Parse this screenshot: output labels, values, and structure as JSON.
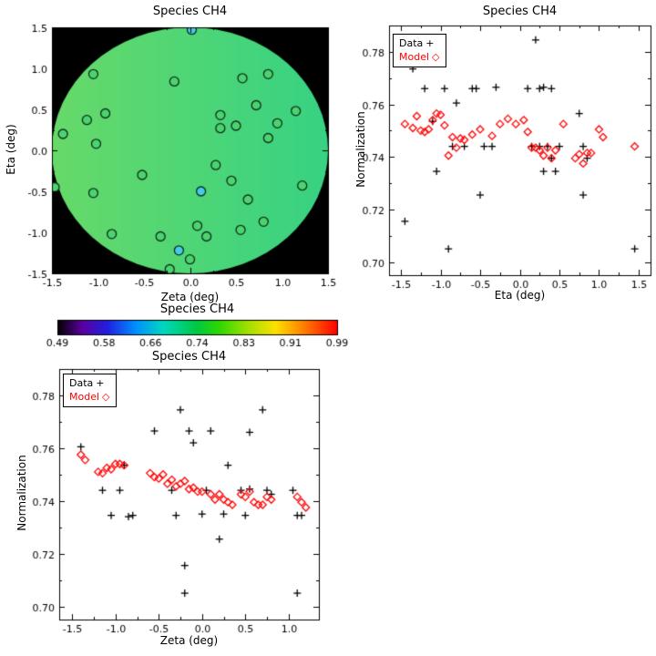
{
  "page": {
    "background": "#ffffff"
  },
  "chart_data": [
    {
      "id": "map",
      "type": "scatter",
      "title": "Species CH4",
      "xlabel": "Zeta (deg)",
      "ylabel": "Eta (deg)",
      "xlim": [
        -1.5,
        1.5
      ],
      "ylim": [
        -1.5,
        1.5
      ],
      "xticks": [
        -1.5,
        -1.0,
        -0.5,
        0.0,
        0.5,
        1.0,
        1.5
      ],
      "xticklabels": [
        "-1.5",
        "-1.0",
        "-0.5",
        "0.0",
        "0.5",
        "1.0",
        "1.5"
      ],
      "yticks": [
        -1.5,
        -1.0,
        -0.5,
        0.0,
        0.5,
        1.0,
        1.5
      ],
      "yticklabels": [
        "-1.5",
        "-1.0",
        "-0.5",
        "0.0",
        "0.5",
        "1.0",
        "1.5"
      ],
      "plot_bg": "#000000",
      "disk": {
        "cx": 0,
        "cy": 0,
        "radius": 1.5,
        "gradient": [
          "#67da69",
          "#37d283"
        ]
      },
      "point_style": {
        "outline": "#0c2e18",
        "default_fill": "#4cd36f",
        "radius_px": 5
      },
      "points": [
        {
          "x": 0.02,
          "y": 1.47,
          "fill": "#49c8e8"
        },
        {
          "x": -1.05,
          "y": 0.93
        },
        {
          "x": -0.17,
          "y": 0.84
        },
        {
          "x": 0.57,
          "y": 0.88
        },
        {
          "x": 0.85,
          "y": 0.93
        },
        {
          "x": 1.15,
          "y": 0.48
        },
        {
          "x": 0.72,
          "y": 0.55
        },
        {
          "x": 0.95,
          "y": 0.33
        },
        {
          "x": 0.33,
          "y": 0.43
        },
        {
          "x": 0.5,
          "y": 0.3
        },
        {
          "x": 0.33,
          "y": 0.27
        },
        {
          "x": -0.92,
          "y": 0.45
        },
        {
          "x": -1.12,
          "y": 0.37
        },
        {
          "x": -1.38,
          "y": 0.2
        },
        {
          "x": -1.02,
          "y": 0.08
        },
        {
          "x": 0.85,
          "y": 0.15
        },
        {
          "x": -1.47,
          "y": -0.45
        },
        {
          "x": -1.05,
          "y": -0.52
        },
        {
          "x": -0.52,
          "y": -0.3
        },
        {
          "x": 0.28,
          "y": -0.18
        },
        {
          "x": 0.45,
          "y": -0.37
        },
        {
          "x": 0.12,
          "y": -0.5,
          "fill": "#49c8e8"
        },
        {
          "x": 0.63,
          "y": -0.6
        },
        {
          "x": 1.22,
          "y": -0.43
        },
        {
          "x": -0.85,
          "y": -1.02
        },
        {
          "x": -0.32,
          "y": -1.05
        },
        {
          "x": 0.08,
          "y": -0.92
        },
        {
          "x": 0.55,
          "y": -0.97
        },
        {
          "x": 0.8,
          "y": -0.87
        },
        {
          "x": -0.12,
          "y": -1.22,
          "fill": "#49c8e8"
        },
        {
          "x": 0.0,
          "y": -1.33
        },
        {
          "x": -0.22,
          "y": -1.45
        },
        {
          "x": 0.18,
          "y": -1.05
        }
      ]
    },
    {
      "id": "norm_vs_eta",
      "type": "scatter",
      "title": "Species CH4",
      "xlabel": "Eta (deg)",
      "ylabel": "Normalization",
      "xlim": [
        -1.65,
        1.65
      ],
      "ylim": [
        0.695,
        0.79
      ],
      "xticks": [
        -1.5,
        -1.0,
        -0.5,
        0.0,
        0.5,
        1.0,
        1.5
      ],
      "xticklabels": [
        "-1.5",
        "-1.0",
        "-0.5",
        "0.0",
        "0.5",
        "1.0",
        "1.5"
      ],
      "yticks": [
        0.7,
        0.72,
        0.74,
        0.76,
        0.78
      ],
      "yticklabels": [
        "0.70",
        "0.72",
        "0.74",
        "0.76",
        "0.78"
      ],
      "legend": [
        {
          "label": "Data",
          "glyph": "+",
          "color": "#000000"
        },
        {
          "label": "Model",
          "glyph": "◇",
          "color": "#ff0000"
        }
      ],
      "series": [
        {
          "name": "Data",
          "marker": "plus",
          "color": "#000000",
          "points": [
            [
              -1.45,
              0.7155
            ],
            [
              -1.35,
              0.7735
            ],
            [
              -1.2,
              0.766
            ],
            [
              -1.1,
              0.7535
            ],
            [
              -1.05,
              0.7345
            ],
            [
              -0.95,
              0.766
            ],
            [
              -0.9,
              0.705
            ],
            [
              -0.85,
              0.744
            ],
            [
              -0.8,
              0.7605
            ],
            [
              -0.7,
              0.744
            ],
            [
              -0.6,
              0.766
            ],
            [
              -0.55,
              0.766
            ],
            [
              -0.5,
              0.7255
            ],
            [
              -0.45,
              0.744
            ],
            [
              -0.35,
              0.744
            ],
            [
              -0.3,
              0.7665
            ],
            [
              0.1,
              0.766
            ],
            [
              0.2,
              0.7845
            ],
            [
              0.25,
              0.766
            ],
            [
              0.3,
              0.7665
            ],
            [
              0.4,
              0.766
            ],
            [
              0.15,
              0.744
            ],
            [
              0.25,
              0.744
            ],
            [
              0.3,
              0.7345
            ],
            [
              0.35,
              0.744
            ],
            [
              0.4,
              0.7395
            ],
            [
              0.45,
              0.7345
            ],
            [
              0.5,
              0.744
            ],
            [
              0.75,
              0.7565
            ],
            [
              0.8,
              0.744
            ],
            [
              0.85,
              0.7395
            ],
            [
              0.8,
              0.7255
            ],
            [
              1.45,
              0.705
            ]
          ]
        },
        {
          "name": "Model",
          "marker": "diamond",
          "color": "#ff0000",
          "points": [
            [
              -1.45,
              0.7525
            ],
            [
              -1.35,
              0.751
            ],
            [
              -1.3,
              0.7555
            ],
            [
              -1.25,
              0.75
            ],
            [
              -1.2,
              0.7495
            ],
            [
              -1.15,
              0.7505
            ],
            [
              -1.1,
              0.754
            ],
            [
              -1.05,
              0.7565
            ],
            [
              -1.0,
              0.756
            ],
            [
              -0.95,
              0.752
            ],
            [
              -0.9,
              0.7405
            ],
            [
              -0.85,
              0.7475
            ],
            [
              -0.8,
              0.7435
            ],
            [
              -0.75,
              0.747
            ],
            [
              -0.7,
              0.7465
            ],
            [
              -0.6,
              0.7485
            ],
            [
              -0.5,
              0.7505
            ],
            [
              -0.35,
              0.748
            ],
            [
              -0.25,
              0.7525
            ],
            [
              -0.15,
              0.7545
            ],
            [
              -0.05,
              0.7525
            ],
            [
              0.05,
              0.754
            ],
            [
              0.1,
              0.7495
            ],
            [
              0.15,
              0.7435
            ],
            [
              0.2,
              0.7435
            ],
            [
              0.25,
              0.7425
            ],
            [
              0.3,
              0.7405
            ],
            [
              0.35,
              0.7435
            ],
            [
              0.4,
              0.7395
            ],
            [
              0.45,
              0.7425
            ],
            [
              0.55,
              0.7525
            ],
            [
              0.7,
              0.7395
            ],
            [
              0.75,
              0.741
            ],
            [
              0.8,
              0.7375
            ],
            [
              0.85,
              0.7415
            ],
            [
              0.9,
              0.7415
            ],
            [
              1.0,
              0.7505
            ],
            [
              1.05,
              0.7475
            ],
            [
              1.45,
              0.744
            ]
          ]
        }
      ]
    },
    {
      "id": "colorbar",
      "type": "colorbar",
      "title": "Species CH4",
      "tick_labels": [
        "0.49",
        "0.58",
        "0.66",
        "0.74",
        "0.83",
        "0.91",
        "0.99"
      ],
      "gradient": [
        [
          0.0,
          "#000000"
        ],
        [
          0.09,
          "#5a00a0"
        ],
        [
          0.18,
          "#2020e0"
        ],
        [
          0.28,
          "#0090ff"
        ],
        [
          0.38,
          "#00d8c0"
        ],
        [
          0.5,
          "#00c840"
        ],
        [
          0.58,
          "#30d800"
        ],
        [
          0.68,
          "#a0e000"
        ],
        [
          0.78,
          "#ffe000"
        ],
        [
          0.88,
          "#ff8000"
        ],
        [
          1.0,
          "#ff0000"
        ]
      ]
    },
    {
      "id": "norm_vs_zeta",
      "type": "scatter",
      "title": "Species CH4",
      "xlabel": "Zeta (deg)",
      "ylabel": "Normalization",
      "xlim": [
        -1.65,
        1.35
      ],
      "ylim": [
        0.695,
        0.79
      ],
      "xticks": [
        -1.5,
        -1.0,
        -0.5,
        0.0,
        0.5,
        1.0
      ],
      "xticklabels": [
        "-1.5",
        "-1.0",
        "-0.5",
        "0.0",
        "0.5",
        "1.0"
      ],
      "yticks": [
        0.7,
        0.72,
        0.74,
        0.76,
        0.78
      ],
      "yticklabels": [
        "0.70",
        "0.72",
        "0.74",
        "0.76",
        "0.78"
      ],
      "legend": [
        {
          "label": "Data",
          "glyph": "+",
          "color": "#000000"
        },
        {
          "label": "Model",
          "glyph": "◇",
          "color": "#ff0000"
        }
      ],
      "series": [
        {
          "name": "Data",
          "marker": "plus",
          "color": "#000000",
          "points": [
            [
              -1.4,
              0.7605
            ],
            [
              -1.15,
              0.744
            ],
            [
              -1.05,
              0.7345
            ],
            [
              -0.95,
              0.744
            ],
            [
              -0.9,
              0.7535
            ],
            [
              -0.85,
              0.734
            ],
            [
              -0.8,
              0.7345
            ],
            [
              -0.55,
              0.7665
            ],
            [
              -0.35,
              0.744
            ],
            [
              -0.3,
              0.7345
            ],
            [
              -0.25,
              0.7745
            ],
            [
              -0.2,
              0.7155
            ],
            [
              -0.2,
              0.705
            ],
            [
              -0.15,
              0.7665
            ],
            [
              -0.1,
              0.762
            ],
            [
              0.0,
              0.735
            ],
            [
              0.05,
              0.744
            ],
            [
              0.1,
              0.7665
            ],
            [
              0.2,
              0.7255
            ],
            [
              0.25,
              0.735
            ],
            [
              0.3,
              0.7535
            ],
            [
              0.45,
              0.744
            ],
            [
              0.5,
              0.7345
            ],
            [
              0.55,
              0.7445
            ],
            [
              0.55,
              0.766
            ],
            [
              0.7,
              0.7745
            ],
            [
              0.75,
              0.744
            ],
            [
              0.8,
              0.7425
            ],
            [
              1.05,
              0.744
            ],
            [
              1.1,
              0.7345
            ],
            [
              1.15,
              0.7345
            ],
            [
              1.1,
              0.705
            ]
          ]
        },
        {
          "name": "Model",
          "marker": "diamond",
          "color": "#ff0000",
          "points": [
            [
              -1.4,
              0.7575
            ],
            [
              -1.35,
              0.7555
            ],
            [
              -1.2,
              0.751
            ],
            [
              -1.15,
              0.7505
            ],
            [
              -1.1,
              0.7525
            ],
            [
              -1.05,
              0.752
            ],
            [
              -1.0,
              0.754
            ],
            [
              -0.95,
              0.754
            ],
            [
              -0.9,
              0.7535
            ],
            [
              -0.6,
              0.7505
            ],
            [
              -0.55,
              0.749
            ],
            [
              -0.5,
              0.7485
            ],
            [
              -0.45,
              0.75
            ],
            [
              -0.4,
              0.7465
            ],
            [
              -0.35,
              0.748
            ],
            [
              -0.3,
              0.7455
            ],
            [
              -0.25,
              0.7465
            ],
            [
              -0.2,
              0.7475
            ],
            [
              -0.15,
              0.7445
            ],
            [
              -0.1,
              0.745
            ],
            [
              -0.05,
              0.7435
            ],
            [
              0.0,
              0.7435
            ],
            [
              0.1,
              0.7425
            ],
            [
              0.15,
              0.7405
            ],
            [
              0.2,
              0.7425
            ],
            [
              0.25,
              0.7405
            ],
            [
              0.3,
              0.7395
            ],
            [
              0.35,
              0.7385
            ],
            [
              0.45,
              0.7425
            ],
            [
              0.5,
              0.7415
            ],
            [
              0.55,
              0.7435
            ],
            [
              0.6,
              0.7395
            ],
            [
              0.65,
              0.7385
            ],
            [
              0.7,
              0.7385
            ],
            [
              0.75,
              0.7415
            ],
            [
              0.8,
              0.7405
            ],
            [
              1.1,
              0.7415
            ],
            [
              1.15,
              0.7395
            ],
            [
              1.2,
              0.7375
            ]
          ]
        }
      ]
    }
  ]
}
